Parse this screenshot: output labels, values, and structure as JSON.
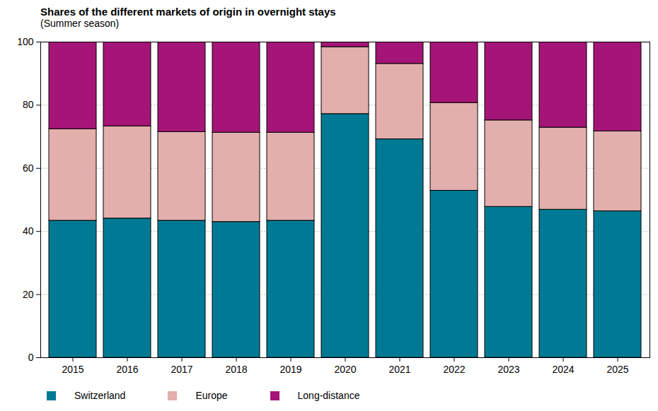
{
  "chart_data": {
    "type": "bar",
    "stacked": true,
    "grid": true,
    "title": "Shares of the different markets of origin in overnight stays",
    "subtitle": "(Summer season)",
    "categories": [
      "2015",
      "2016",
      "2017",
      "2018",
      "2019",
      "2020",
      "2021",
      "2022",
      "2023",
      "2024",
      "2025"
    ],
    "series": [
      {
        "name": "Switzerland",
        "color": "#007a94",
        "values": [
          43.4,
          44.1,
          43.4,
          43.0,
          43.4,
          77.2,
          69.2,
          52.9,
          47.8,
          46.9,
          46.4
        ]
      },
      {
        "name": "Europe",
        "color": "#e3afad",
        "values": [
          29.0,
          29.2,
          28.1,
          28.3,
          27.9,
          21.2,
          23.9,
          27.8,
          27.4,
          26.0,
          25.3
        ]
      },
      {
        "name": "Long-distance",
        "color": "#a51577",
        "values": [
          27.6,
          26.7,
          28.5,
          28.7,
          28.7,
          1.6,
          6.9,
          19.3,
          24.8,
          27.1,
          28.3
        ]
      }
    ],
    "ylim": [
      0,
      100
    ],
    "yticks": [
      0,
      20,
      40,
      60,
      80,
      100
    ]
  }
}
